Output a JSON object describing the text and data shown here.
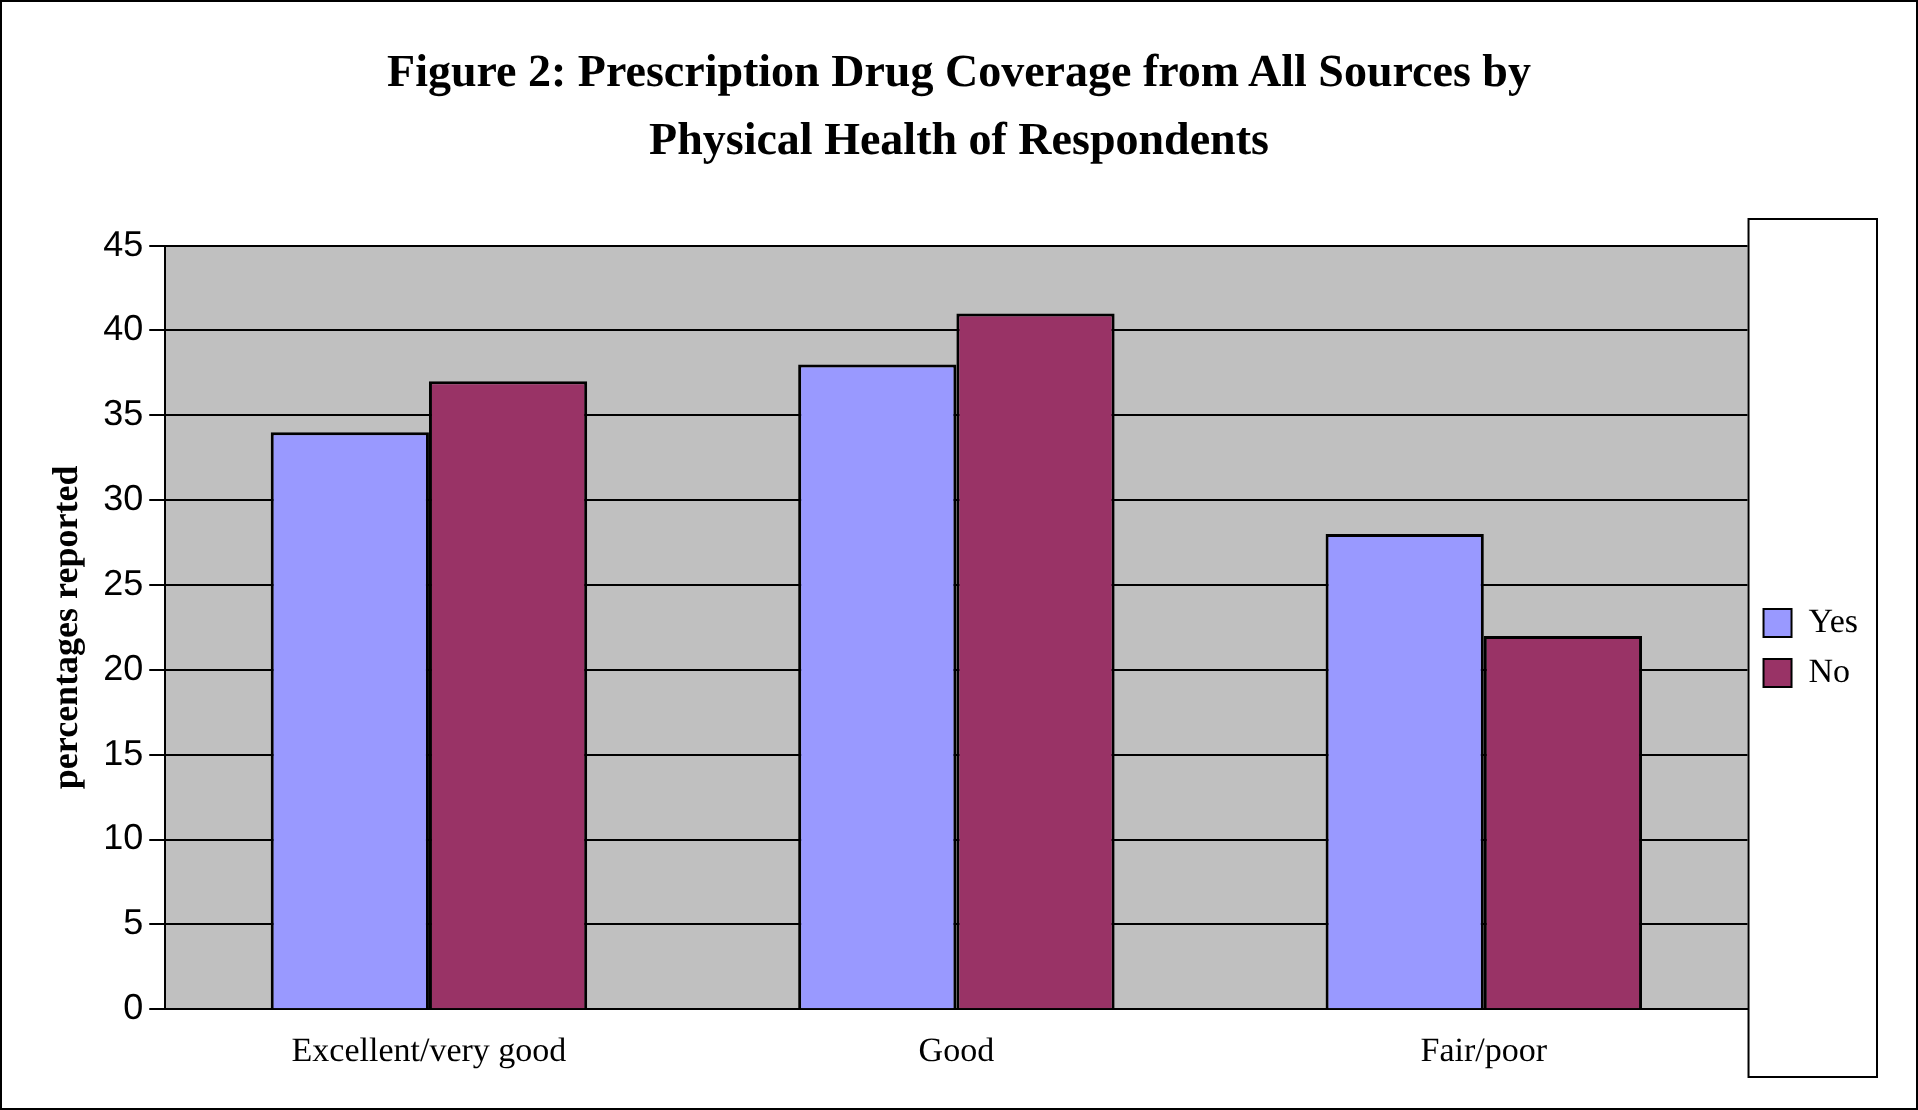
{
  "chart_data": {
    "type": "bar",
    "title": "Figure 2: Prescription Drug Coverage from All Sources by Physical Health of Respondents",
    "ylabel": "percentages reported",
    "categories": [
      "Excellent/very good",
      "Good",
      "Fair/poor"
    ],
    "series": [
      {
        "name": "Yes",
        "color": "#9999ff",
        "values": [
          34,
          38,
          28
        ]
      },
      {
        "name": "No",
        "color": "#993366",
        "values": [
          37,
          41,
          22
        ]
      }
    ],
    "ylim": [
      0,
      45
    ],
    "yticks": [
      0,
      5,
      10,
      15,
      20,
      25,
      30,
      35,
      40,
      45
    ],
    "grid": "y",
    "legend": "right"
  }
}
